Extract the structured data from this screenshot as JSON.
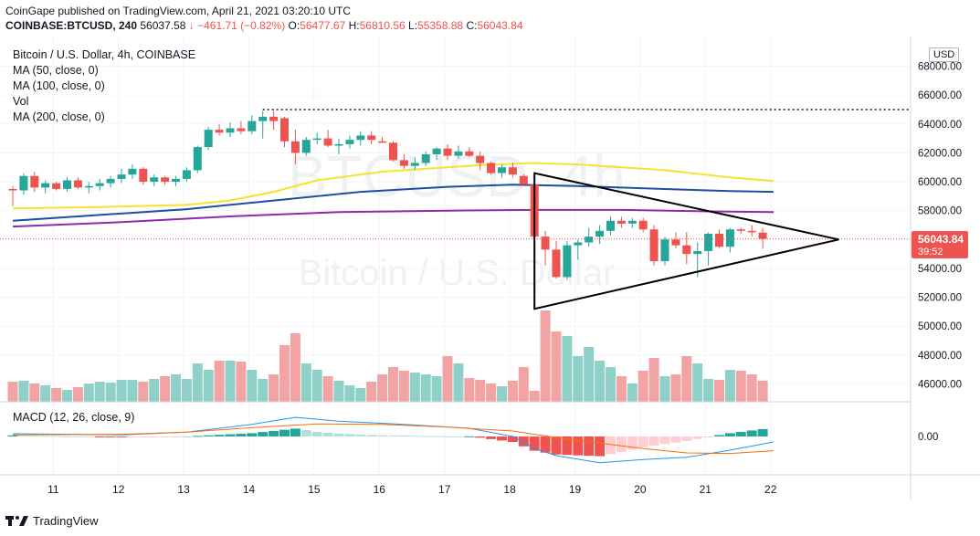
{
  "header": {
    "publisher": "CoinGape published on TradingView.com, April 21, 2021 03:20:10 UTC",
    "symbol_line": "COINBASE:BTCUSD, 240",
    "last": "56037.58",
    "change": "↓ −461.71 (−0.82%)",
    "o_label": "O:",
    "o": "56477.67",
    "h_label": "H:",
    "h": "56810.56",
    "l_label": "L:",
    "l": "55358.88",
    "c_label": "C:",
    "c": "56043.84"
  },
  "legend": {
    "title": "Bitcoin / U.S. Dollar, 4h, COINBASE",
    "ma50": "MA (50, close, 0)",
    "ma100": "MA (100, close, 0)",
    "vol": "Vol",
    "ma200": "MA (200, close, 0)"
  },
  "macd_label": "MACD (12, 26, close, 9)",
  "currency": "USD",
  "price_tag": {
    "value": "56043.84",
    "timer": "39:52"
  },
  "watermark": {
    "big": "BTCUSD, 4h",
    "sub": "Bitcoin / U.S. Dollar"
  },
  "footer": {
    "brand": "TradingView"
  },
  "colors": {
    "up": "#26a69a",
    "down": "#ef5350",
    "ma50": "#f7e22e",
    "ma100": "#1e4f9c",
    "ma200": "#8e2ba8",
    "macd": "#2196f3",
    "signal": "#ff6d00",
    "vol_up": "#8fd1c8",
    "vol_down": "#f2a3a3"
  },
  "chart_data": {
    "type": "candlestick",
    "y_ticks": [
      68000,
      66000,
      64000,
      62000,
      60000,
      58000,
      56000,
      54000,
      52000,
      50000,
      48000,
      46000
    ],
    "y_tick_labels": [
      "68000.00",
      "66000.00",
      "64000.00",
      "62000.00",
      "60000.00",
      "58000.00",
      "56000.00",
      "54000.00",
      "52000.00",
      "50000.00",
      "48000.00",
      "46000.00"
    ],
    "ylim": [
      45000,
      69200
    ],
    "x_tick_labels": [
      "11",
      "12",
      "13",
      "14",
      "15",
      "16",
      "17",
      "18",
      "19",
      "20",
      "21",
      "22"
    ],
    "macd_tick_label": "0.00",
    "candles": [
      [
        59500,
        59700,
        58300,
        59400
      ],
      [
        59400,
        60600,
        59100,
        60400
      ],
      [
        60400,
        60700,
        59300,
        59600
      ],
      [
        59600,
        60100,
        59200,
        59900
      ],
      [
        59900,
        60000,
        59400,
        59500
      ],
      [
        59500,
        60300,
        59300,
        60100
      ],
      [
        60100,
        60300,
        59500,
        59600
      ],
      [
        59600,
        60000,
        59200,
        59700
      ],
      [
        59700,
        60200,
        59400,
        59900
      ],
      [
        59900,
        60400,
        59600,
        60200
      ],
      [
        60200,
        60900,
        59900,
        60500
      ],
      [
        60500,
        61200,
        60200,
        60900
      ],
      [
        60900,
        61000,
        59800,
        60000
      ],
      [
        60000,
        60500,
        59700,
        60300
      ],
      [
        60300,
        60400,
        59800,
        60000
      ],
      [
        60000,
        60400,
        59700,
        60200
      ],
      [
        60200,
        61000,
        60000,
        60800
      ],
      [
        60800,
        62500,
        60600,
        62400
      ],
      [
        62400,
        63800,
        62200,
        63600
      ],
      [
        63600,
        64000,
        63200,
        63400
      ],
      [
        63400,
        64100,
        63100,
        63700
      ],
      [
        63700,
        64200,
        63300,
        63500
      ],
      [
        63500,
        64600,
        63300,
        64200
      ],
      [
        64200,
        64900,
        63000,
        64500
      ],
      [
        64500,
        64900,
        63600,
        64200
      ],
      [
        64400,
        64500,
        62400,
        62800
      ],
      [
        62800,
        63600,
        61200,
        62000
      ],
      [
        62000,
        63100,
        61800,
        62900
      ],
      [
        62900,
        63400,
        62600,
        63000
      ],
      [
        63000,
        63600,
        62400,
        62500
      ],
      [
        62500,
        63000,
        61900,
        62600
      ],
      [
        62600,
        63200,
        62300,
        62900
      ],
      [
        62900,
        63500,
        62500,
        63200
      ],
      [
        63200,
        63500,
        62600,
        62900
      ],
      [
        62800,
        63100,
        62700,
        62700
      ],
      [
        62700,
        62800,
        61400,
        61500
      ],
      [
        61500,
        61900,
        60900,
        61100
      ],
      [
        61100,
        61700,
        60800,
        61300
      ],
      [
        61300,
        62100,
        61100,
        61900
      ],
      [
        61900,
        62400,
        61500,
        62300
      ],
      [
        62300,
        62600,
        61500,
        61800
      ],
      [
        61800,
        62500,
        61600,
        62100
      ],
      [
        62100,
        62400,
        61700,
        61800
      ],
      [
        61800,
        62100,
        60800,
        61300
      ],
      [
        61300,
        61400,
        60500,
        60600
      ],
      [
        60600,
        61200,
        60300,
        61000
      ],
      [
        61000,
        61300,
        60300,
        60500
      ],
      [
        60400,
        60500,
        59900,
        59800
      ],
      [
        59800,
        60000,
        56100,
        56200
      ],
      [
        56200,
        56600,
        54200,
        55300
      ],
      [
        55300,
        55900,
        53300,
        53400
      ],
      [
        53400,
        55900,
        53200,
        55600
      ],
      [
        55600,
        56000,
        54600,
        55800
      ],
      [
        55800,
        56800,
        55500,
        56200
      ],
      [
        56200,
        57000,
        55700,
        56600
      ],
      [
        56600,
        57600,
        56300,
        57300
      ],
      [
        57300,
        57600,
        56800,
        57100
      ],
      [
        57100,
        57500,
        56800,
        57300
      ],
      [
        57300,
        57500,
        56500,
        56700
      ],
      [
        56700,
        57000,
        54200,
        54500
      ],
      [
        54500,
        56200,
        54200,
        56000
      ],
      [
        56000,
        56500,
        55400,
        55600
      ],
      [
        55600,
        56500,
        54300,
        55000
      ],
      [
        55000,
        55800,
        53400,
        55200
      ],
      [
        55200,
        56500,
        54200,
        56400
      ],
      [
        56400,
        56700,
        55400,
        55500
      ],
      [
        55500,
        56800,
        55100,
        56700
      ],
      [
        56700,
        56800,
        56400,
        56600
      ],
      [
        56600,
        57000,
        56200,
        56500
      ],
      [
        56477,
        56810,
        55358,
        56043
      ]
    ],
    "volume_note": "relative volumes, 0-1",
    "volume": [
      0.22,
      0.23,
      0.2,
      0.18,
      0.15,
      0.13,
      0.16,
      0.2,
      0.22,
      0.21,
      0.24,
      0.24,
      0.22,
      0.25,
      0.28,
      0.3,
      0.25,
      0.42,
      0.35,
      0.45,
      0.45,
      0.44,
      0.35,
      0.25,
      0.3,
      0.62,
      0.75,
      0.42,
      0.35,
      0.28,
      0.23,
      0.18,
      0.15,
      0.22,
      0.3,
      0.38,
      0.34,
      0.32,
      0.3,
      0.28,
      0.5,
      0.42,
      0.26,
      0.24,
      0.2,
      0.17,
      0.23,
      0.38,
      0.12,
      1.0,
      0.77,
      0.72,
      0.5,
      0.6,
      0.45,
      0.38,
      0.28,
      0.2,
      0.34,
      0.48,
      0.28,
      0.3,
      0.5,
      0.42,
      0.25,
      0.24,
      0.35,
      0.34,
      0.3,
      0.23
    ],
    "ma50": [
      [
        0,
        58150
      ],
      [
        8,
        58250
      ],
      [
        16,
        58400
      ],
      [
        20,
        58700
      ],
      [
        24,
        59300
      ],
      [
        28,
        60100
      ],
      [
        34,
        60700
      ],
      [
        40,
        61000
      ],
      [
        44,
        61200
      ],
      [
        48,
        61300
      ],
      [
        52,
        61200
      ],
      [
        60,
        60800
      ],
      [
        66,
        60300
      ],
      [
        70,
        60050
      ]
    ],
    "ma100": [
      [
        0,
        57300
      ],
      [
        8,
        57700
      ],
      [
        16,
        58100
      ],
      [
        24,
        58700
      ],
      [
        32,
        59300
      ],
      [
        40,
        59650
      ],
      [
        46,
        59800
      ],
      [
        52,
        59700
      ],
      [
        60,
        59500
      ],
      [
        66,
        59350
      ],
      [
        70,
        59300
      ]
    ],
    "ma200": [
      [
        0,
        56900
      ],
      [
        10,
        57200
      ],
      [
        20,
        57600
      ],
      [
        30,
        57900
      ],
      [
        40,
        58000
      ],
      [
        48,
        58050
      ],
      [
        56,
        58050
      ],
      [
        64,
        57950
      ],
      [
        70,
        57900
      ]
    ],
    "resistance_level": 65000,
    "triangle": [
      [
        48,
        60600
      ],
      [
        48,
        51200
      ],
      [
        76,
        56000
      ]
    ],
    "macd": [
      [
        0,
        0.05
      ],
      [
        10,
        0.03
      ],
      [
        16,
        0.08
      ],
      [
        22,
        0.22
      ],
      [
        26,
        0.35
      ],
      [
        30,
        0.28
      ],
      [
        36,
        0.22
      ],
      [
        42,
        0.15
      ],
      [
        46,
        0.0
      ],
      [
        48,
        -0.22
      ],
      [
        50,
        -0.35
      ],
      [
        54,
        -0.48
      ],
      [
        58,
        -0.42
      ],
      [
        62,
        -0.38
      ],
      [
        66,
        -0.25
      ],
      [
        70,
        -0.1
      ]
    ],
    "signal": [
      [
        0,
        0.03
      ],
      [
        10,
        0.04
      ],
      [
        16,
        0.08
      ],
      [
        22,
        0.16
      ],
      [
        28,
        0.23
      ],
      [
        34,
        0.22
      ],
      [
        40,
        0.17
      ],
      [
        46,
        0.1
      ],
      [
        50,
        -0.02
      ],
      [
        54,
        -0.12
      ],
      [
        58,
        -0.22
      ],
      [
        62,
        -0.3
      ],
      [
        66,
        -0.31
      ],
      [
        70,
        -0.26
      ]
    ]
  }
}
